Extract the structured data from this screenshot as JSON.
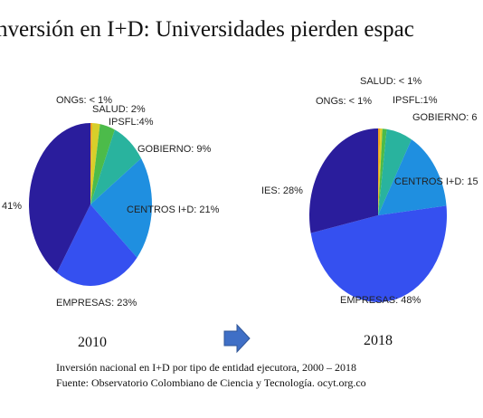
{
  "title": "nversión en I+D: Universidades pierden espac",
  "chart_data": [
    {
      "type": "pie",
      "subtitle": "2010",
      "values": [
        0.5,
        2,
        4,
        9,
        21,
        23,
        41
      ],
      "value_labels": [
        "ONGs: < 1%",
        "SALUD: 2%",
        "IPSFL:4%",
        "GOBIERNO: 9%",
        "CENTROS I+D: 21%",
        "EMPRESAS: 23%",
        "41%"
      ],
      "colors": [
        "#f2a31e",
        "#d6cf2a",
        "#4cbb4a",
        "#29b39e",
        "#1f8fe0",
        "#3550f0",
        "#2a1d9c"
      ]
    },
    {
      "type": "pie",
      "subtitle": "2018",
      "values": [
        0.5,
        0.5,
        1,
        6,
        15,
        48,
        28
      ],
      "value_labels": [
        "ONGs: < 1%",
        "SALUD: < 1%",
        "IPSFL:1%",
        "GOBIERNO: 6",
        "CENTROS I+D: 15",
        "EMPRESAS: 48%",
        "IES: 28%"
      ],
      "colors": [
        "#f2a31e",
        "#d6cf2a",
        "#4cbb4a",
        "#29b39e",
        "#1f8fe0",
        "#3550f0",
        "#2a1d9c"
      ]
    }
  ],
  "caption": "Inversión nacional en I+D por tipo de entidad ejecutora, 2000 – 2018",
  "source": "Fuente: Observatorio Colombiano de Ciencia y Tecnología. ocyt.org.co"
}
